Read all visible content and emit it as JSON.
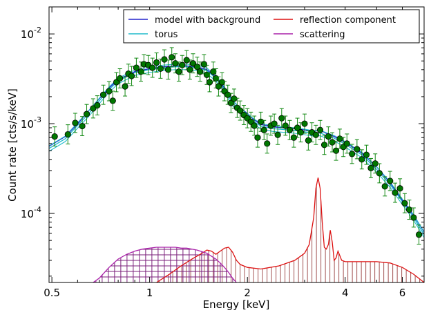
{
  "chart_data": {
    "type": "line",
    "xlabel": "Energy [keV]",
    "ylabel": "Count rate [cts/s/keV]",
    "xscale": "log",
    "yscale": "log",
    "xlim": [
      0.49,
      7.0
    ],
    "ylim": [
      1.7e-05,
      0.02
    ],
    "grid": false,
    "legend_position": "top-right",
    "x_ticks": [
      {
        "value": 0.5,
        "label": "0.5"
      },
      {
        "value": 1,
        "label": "1"
      },
      {
        "value": 2,
        "label": "2"
      },
      {
        "value": 4,
        "label": "4"
      },
      {
        "value": 6,
        "label": "6"
      }
    ],
    "y_ticks": [
      {
        "value": 0.0001,
        "base": "10",
        "exp": "-4"
      },
      {
        "value": 0.001,
        "base": "10",
        "exp": "-3"
      },
      {
        "value": 0.01,
        "base": "10",
        "exp": "-2"
      }
    ],
    "series": [
      {
        "name": "model with background",
        "color": "#2222cc",
        "x": [
          0.49,
          0.55,
          0.6,
          0.65,
          0.7,
          0.75,
          0.8,
          0.9,
          1.0,
          1.1,
          1.2,
          1.3,
          1.4,
          1.5,
          1.6,
          1.7,
          1.8,
          1.9,
          2.0,
          2.1,
          2.2,
          2.4,
          2.6,
          2.8,
          3.0,
          3.2,
          3.35,
          3.5,
          3.7,
          4.0,
          4.5,
          5.0,
          5.5,
          6.0,
          6.5,
          7.0
        ],
        "y": [
          0.00056,
          0.00072,
          0.001,
          0.0014,
          0.0019,
          0.0025,
          0.0031,
          0.0038,
          0.0041,
          0.0043,
          0.0044,
          0.0044,
          0.0043,
          0.004,
          0.0033,
          0.0025,
          0.0018,
          0.0015,
          0.0013,
          0.0011,
          0.00098,
          0.00092,
          0.0009,
          0.00088,
          0.00085,
          0.00082,
          0.00085,
          0.00078,
          0.00072,
          0.00062,
          0.00047,
          0.00033,
          0.00022,
          0.00014,
          9.5e-05,
          6.2e-05
        ]
      },
      {
        "name": "torus",
        "color": "#22bbcc",
        "x": [
          0.49,
          0.55,
          0.6,
          0.65,
          0.7,
          0.75,
          0.8,
          0.9,
          1.0,
          1.1,
          1.2,
          1.3,
          1.4,
          1.5,
          1.6,
          1.7,
          1.8,
          1.9,
          2.0,
          2.1,
          2.2,
          2.4,
          2.6,
          2.8,
          3.0,
          3.2,
          3.35,
          3.5,
          3.7,
          4.0,
          4.5,
          5.0,
          5.5,
          6.0,
          6.5,
          7.0
        ],
        "y": [
          0.00053,
          0.00068,
          0.00096,
          0.0013,
          0.0018,
          0.0024,
          0.003,
          0.0037,
          0.004,
          0.0042,
          0.0043,
          0.0043,
          0.0042,
          0.0039,
          0.0032,
          0.0024,
          0.0017,
          0.0014,
          0.0012,
          0.00105,
          0.00094,
          0.00088,
          0.00086,
          0.00084,
          0.00081,
          0.00078,
          0.00079,
          0.00074,
          0.00069,
          0.00059,
          0.00045,
          0.00031,
          0.00021,
          0.000135,
          9e-05,
          5.8e-05
        ]
      },
      {
        "name": "reflection component",
        "color": "#dd1111",
        "x": [
          1.05,
          1.15,
          1.25,
          1.35,
          1.45,
          1.5,
          1.55,
          1.6,
          1.65,
          1.7,
          1.75,
          1.8,
          1.85,
          1.9,
          2.0,
          2.2,
          2.5,
          2.8,
          3.0,
          3.1,
          3.2,
          3.25,
          3.3,
          3.35,
          3.4,
          3.45,
          3.5,
          3.55,
          3.6,
          3.65,
          3.7,
          3.75,
          3.8,
          3.85,
          3.9,
          4.0,
          4.5,
          5.0,
          5.5,
          6.0,
          6.5,
          7.0
        ],
        "y": [
          1.7e-05,
          2.1e-05,
          2.6e-05,
          3.1e-05,
          3.6e-05,
          3.9e-05,
          3.8e-05,
          3.5e-05,
          3.8e-05,
          4.1e-05,
          4.2e-05,
          3.7e-05,
          3e-05,
          2.7e-05,
          2.5e-05,
          2.4e-05,
          2.6e-05,
          3e-05,
          3.6e-05,
          4.5e-05,
          9e-05,
          0.00019,
          0.00025,
          0.00019,
          8e-05,
          4.2e-05,
          4e-05,
          4.5e-05,
          6.5e-05,
          4.8e-05,
          3e-05,
          3.2e-05,
          3.8e-05,
          3.4e-05,
          3e-05,
          2.9e-05,
          2.9e-05,
          2.9e-05,
          2.8e-05,
          2.5e-05,
          2.1e-05,
          1.7e-05
        ]
      },
      {
        "name": "scattering",
        "color": "#aa22aa",
        "x": [
          0.67,
          0.7,
          0.75,
          0.8,
          0.85,
          0.9,
          0.95,
          1.0,
          1.05,
          1.1,
          1.15,
          1.2,
          1.25,
          1.3,
          1.4,
          1.5,
          1.6,
          1.65,
          1.7,
          1.75,
          1.8,
          1.85
        ],
        "y": [
          1.7e-05,
          1.9e-05,
          2.5e-05,
          3.1e-05,
          3.5e-05,
          3.8e-05,
          4e-05,
          4.1e-05,
          4.2e-05,
          4.2e-05,
          4.2e-05,
          4.2e-05,
          4.1e-05,
          4.1e-05,
          3.9e-05,
          3.6e-05,
          3.1e-05,
          2.8e-05,
          2.5e-05,
          2.2e-05,
          1.9e-05,
          1.7e-05
        ]
      }
    ],
    "data_points": {
      "color": "#007700",
      "errorbar_color": "#118811",
      "points": [
        [
          0.51,
          0.00072
        ],
        [
          0.56,
          0.00076
        ],
        [
          0.59,
          0.00102
        ],
        [
          0.62,
          0.00094
        ],
        [
          0.64,
          0.00128
        ],
        [
          0.67,
          0.00148
        ],
        [
          0.69,
          0.0016
        ],
        [
          0.72,
          0.0021
        ],
        [
          0.75,
          0.0023
        ],
        [
          0.77,
          0.0018
        ],
        [
          0.79,
          0.0029
        ],
        [
          0.81,
          0.0032
        ],
        [
          0.84,
          0.0026
        ],
        [
          0.86,
          0.0036
        ],
        [
          0.88,
          0.0034
        ],
        [
          0.91,
          0.0042
        ],
        [
          0.94,
          0.0038
        ],
        [
          0.96,
          0.0046
        ],
        [
          0.99,
          0.0045
        ],
        [
          1.02,
          0.0042
        ],
        [
          1.05,
          0.0048
        ],
        [
          1.08,
          0.0041
        ],
        [
          1.11,
          0.0052
        ],
        [
          1.14,
          0.004
        ],
        [
          1.17,
          0.0055
        ],
        [
          1.2,
          0.0047
        ],
        [
          1.23,
          0.0038
        ],
        [
          1.26,
          0.0045
        ],
        [
          1.3,
          0.0051
        ],
        [
          1.33,
          0.004
        ],
        [
          1.36,
          0.0047
        ],
        [
          1.4,
          0.0043
        ],
        [
          1.43,
          0.0038
        ],
        [
          1.47,
          0.0046
        ],
        [
          1.5,
          0.0035
        ],
        [
          1.53,
          0.0029
        ],
        [
          1.57,
          0.0038
        ],
        [
          1.6,
          0.0032
        ],
        [
          1.63,
          0.0026
        ],
        [
          1.67,
          0.0029
        ],
        [
          1.7,
          0.0023
        ],
        [
          1.74,
          0.0021
        ],
        [
          1.78,
          0.0017
        ],
        [
          1.82,
          0.0019
        ],
        [
          1.86,
          0.0015
        ],
        [
          1.9,
          0.0014
        ],
        [
          1.95,
          0.00125
        ],
        [
          2.0,
          0.00115
        ],
        [
          2.05,
          0.00105
        ],
        [
          2.1,
          0.00095
        ],
        [
          2.15,
          0.0007
        ],
        [
          2.2,
          0.00105
        ],
        [
          2.25,
          0.00085
        ],
        [
          2.3,
          0.0006
        ],
        [
          2.36,
          0.00095
        ],
        [
          2.42,
          0.001
        ],
        [
          2.48,
          0.00075
        ],
        [
          2.55,
          0.00115
        ],
        [
          2.62,
          0.00095
        ],
        [
          2.7,
          0.00085
        ],
        [
          2.78,
          0.0007
        ],
        [
          2.85,
          0.0009
        ],
        [
          2.92,
          0.0008
        ],
        [
          3.0,
          0.001
        ],
        [
          3.08,
          0.00065
        ],
        [
          3.16,
          0.0008
        ],
        [
          3.25,
          0.00075
        ],
        [
          3.35,
          0.00085
        ],
        [
          3.45,
          0.00058
        ],
        [
          3.55,
          0.00072
        ],
        [
          3.65,
          0.00062
        ],
        [
          3.75,
          0.0005
        ],
        [
          3.85,
          0.00068
        ],
        [
          3.95,
          0.00055
        ],
        [
          4.05,
          0.0006
        ],
        [
          4.2,
          0.00046
        ],
        [
          4.35,
          0.00052
        ],
        [
          4.5,
          0.0004
        ],
        [
          4.65,
          0.00045
        ],
        [
          4.8,
          0.00032
        ],
        [
          4.95,
          0.00036
        ],
        [
          5.1,
          0.00028
        ],
        [
          5.3,
          0.0002
        ],
        [
          5.5,
          0.00023
        ],
        [
          5.7,
          0.00017
        ],
        [
          5.9,
          0.00019
        ],
        [
          6.1,
          0.00013
        ],
        [
          6.3,
          0.00011
        ],
        [
          6.5,
          9e-05
        ],
        [
          6.75,
          5.8e-05
        ]
      ]
    }
  }
}
